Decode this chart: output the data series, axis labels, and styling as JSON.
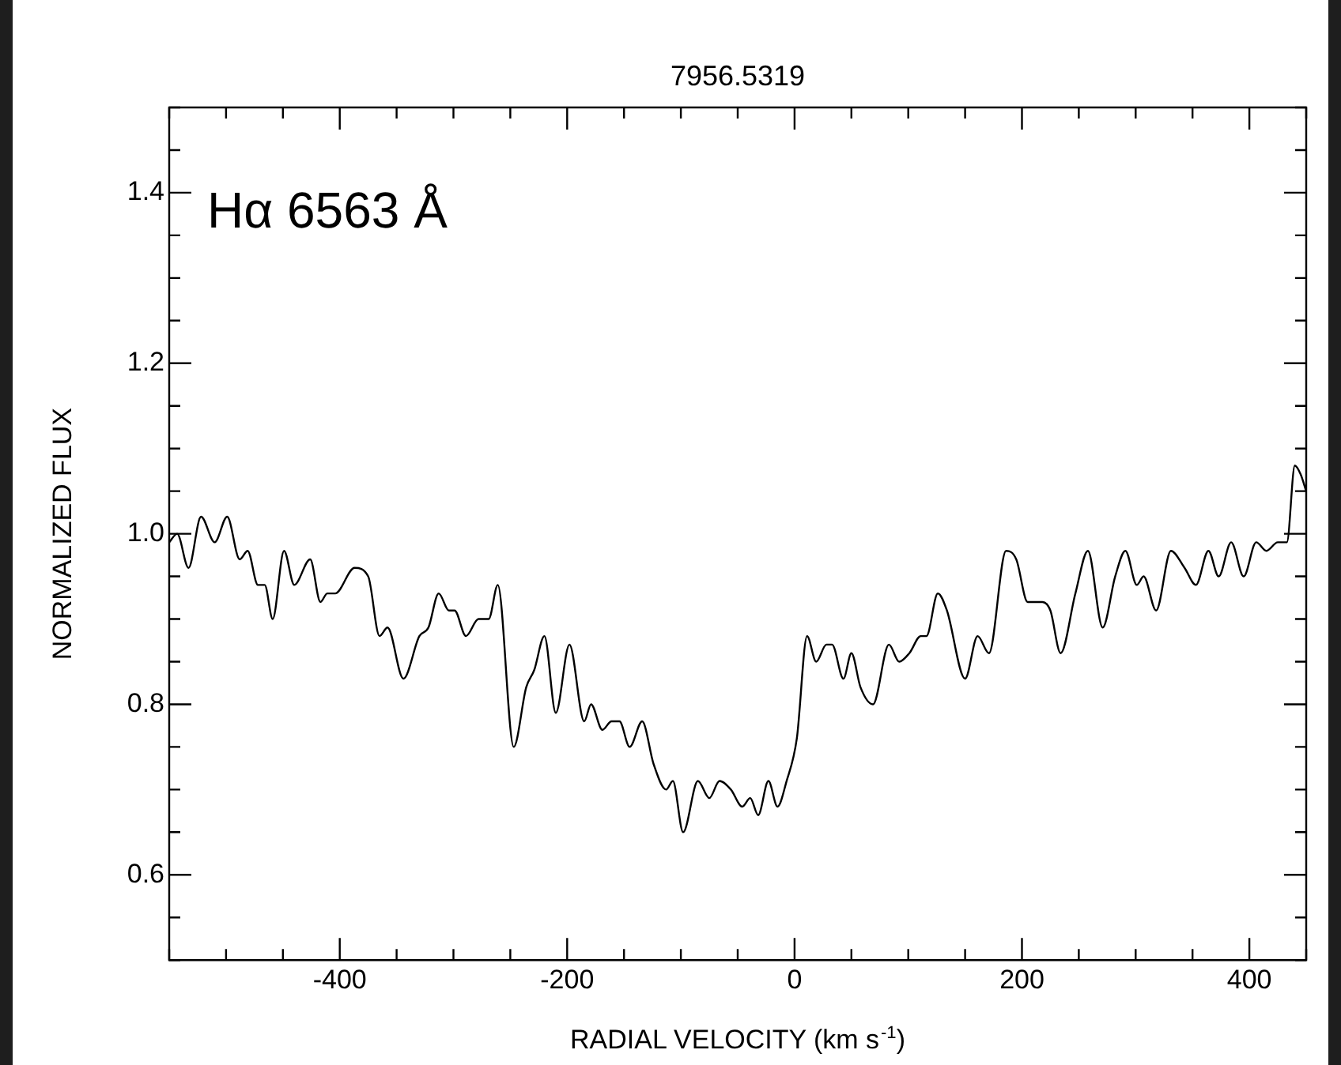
{
  "chart_data": {
    "type": "line",
    "title": "7956.5319",
    "xlabel": "RADIAL VELOCITY (km s$^{-1}$)",
    "ylabel": "NORMALIZED FLUX",
    "annotations": [
      "Hα 6563 Å"
    ],
    "xlim": [
      -550,
      450
    ],
    "ylim": [
      0.5,
      1.5
    ],
    "xticks": [
      {
        "value": -550,
        "label": null
      },
      {
        "value": -500,
        "label": null
      },
      {
        "value": -450,
        "label": null
      },
      -400,
      {
        "value": -350,
        "label": null
      },
      {
        "value": -300,
        "label": null
      },
      {
        "value": -250,
        "label": null
      },
      -200,
      {
        "value": -150,
        "label": null
      },
      {
        "value": -100,
        "label": null
      },
      {
        "value": -50,
        "label": null
      },
      0,
      {
        "value": 50,
        "label": null
      },
      {
        "value": 100,
        "label": null
      },
      {
        "value": 150,
        "label": null
      },
      200,
      {
        "value": 250,
        "label": null
      },
      {
        "value": 300,
        "label": null
      },
      {
        "value": 350,
        "label": null
      },
      400,
      {
        "value": 450,
        "label": null
      }
    ],
    "yticks": [
      {
        "value": 0.5,
        "label": null
      },
      {
        "value": 0.55,
        "label": null
      },
      0.6,
      {
        "value": 0.65,
        "label": null
      },
      {
        "value": 0.7,
        "label": null
      },
      {
        "value": 0.75,
        "label": null
      },
      0.8,
      {
        "value": 0.85,
        "label": null
      },
      {
        "value": 0.9,
        "label": null
      },
      {
        "value": 0.95,
        "label": null
      },
      {
        "value": 1.0,
        "label": "1.0"
      },
      {
        "value": 1.05,
        "label": null
      },
      {
        "value": 1.1,
        "label": null
      },
      {
        "value": 1.15,
        "label": null
      },
      1.2,
      {
        "value": 1.25,
        "label": null
      },
      {
        "value": 1.3,
        "label": null
      },
      {
        "value": 1.35,
        "label": null
      },
      1.4,
      {
        "value": 1.45,
        "label": null
      },
      {
        "value": 1.5,
        "label": null
      }
    ],
    "grid": false,
    "legend": false,
    "marker": "none",
    "line_style": "solid",
    "series": [
      {
        "color": "#000000",
        "x": [
          -550,
          -543,
          -533,
          -522,
          -510,
          -499,
          -488,
          -481,
          -472,
          -466,
          -459,
          -449,
          -440,
          -426,
          -417,
          -411,
          -404,
          -387,
          -375,
          -365,
          -358,
          -344,
          -330,
          -322,
          -313,
          -304,
          -299,
          -289,
          -278,
          -269,
          -261,
          -247,
          -236,
          -229,
          -220,
          -210,
          -198,
          -185,
          -179,
          -169,
          -161,
          -154,
          -145,
          -134,
          -124,
          -113,
          -107,
          -98,
          -85,
          -75,
          -66,
          -56,
          -46,
          -39,
          -32,
          -23,
          -15,
          -7,
          2,
          11,
          19,
          28,
          33,
          43,
          50,
          58,
          69,
          83,
          92,
          101,
          111,
          116,
          126,
          134,
          150,
          161,
          171,
          186,
          195,
          205,
          218,
          225,
          234,
          247,
          258,
          271,
          282,
          291,
          301,
          307,
          318,
          331,
          343,
          353,
          364,
          373,
          384,
          395,
          406,
          415,
          425,
          433,
          440,
          445,
          450
        ],
        "values": [
          0.99,
          1.0,
          0.96,
          1.02,
          0.99,
          1.02,
          0.97,
          0.98,
          0.94,
          0.94,
          0.9,
          0.98,
          0.94,
          0.97,
          0.92,
          0.93,
          0.93,
          0.96,
          0.95,
          0.88,
          0.89,
          0.83,
          0.88,
          0.89,
          0.93,
          0.91,
          0.91,
          0.88,
          0.9,
          0.9,
          0.94,
          0.75,
          0.82,
          0.84,
          0.88,
          0.79,
          0.87,
          0.78,
          0.8,
          0.77,
          0.78,
          0.78,
          0.75,
          0.78,
          0.73,
          0.7,
          0.71,
          0.65,
          0.71,
          0.69,
          0.71,
          0.7,
          0.68,
          0.69,
          0.67,
          0.71,
          0.68,
          0.71,
          0.76,
          0.88,
          0.85,
          0.87,
          0.87,
          0.83,
          0.86,
          0.82,
          0.8,
          0.87,
          0.85,
          0.86,
          0.88,
          0.88,
          0.93,
          0.91,
          0.83,
          0.88,
          0.86,
          0.98,
          0.97,
          0.92,
          0.92,
          0.91,
          0.86,
          0.93,
          0.98,
          0.89,
          0.95,
          0.98,
          0.94,
          0.95,
          0.91,
          0.98,
          0.96,
          0.94,
          0.98,
          0.95,
          0.99,
          0.95,
          0.99,
          0.98,
          0.99,
          0.99,
          1.08,
          1.07,
          1.05
        ]
      }
    ]
  }
}
